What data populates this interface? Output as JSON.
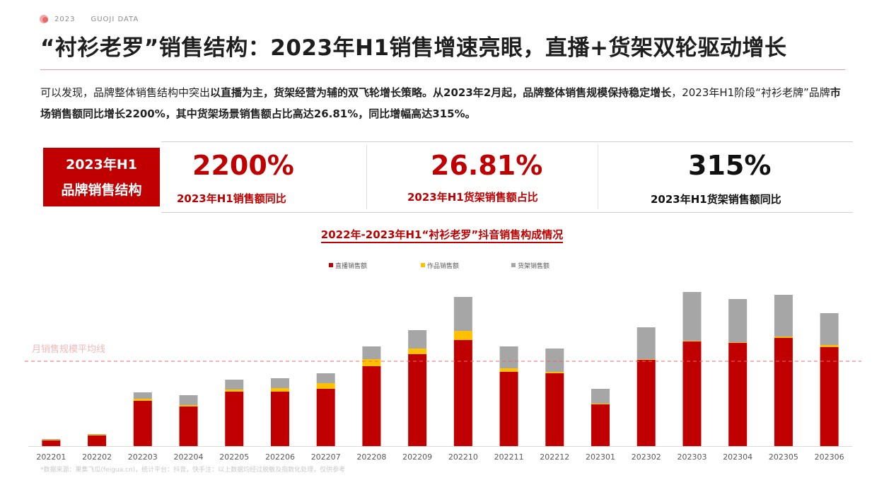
{
  "header": {
    "year": "2023",
    "company": "GUOJI DATA",
    "title": "“衬衫老罗”销售结构：2023年H1销售增速亮眼，直播+货架双轮驱动增长"
  },
  "intro": {
    "p1": "可以发现，品牌整体销售结构中突出",
    "b1": "以直播为主，货架经营为辅的双飞轮增长策略。从2023年2月起，品牌整体销售规模保持稳定增长",
    "p2": "，2023年H1阶段“衬衫老牌”品牌",
    "b2": "市场销售额同比增长2200%，其中货架场景销售额占比高达26.81%，同比增幅高达315%。"
  },
  "kpi": {
    "label_line1": "2023年H1",
    "label_line2": "品牌销售结构",
    "items": [
      {
        "value": "2200%",
        "caption": "2023年H1销售额同比"
      },
      {
        "value": "26.81%",
        "caption": "2023年H1货架销售额占比"
      },
      {
        "value": "315%",
        "caption": "2023年H1货架销售额同比"
      }
    ]
  },
  "chart": {
    "title": "2022年-2023年H1“衬衫老罗”抖音销售构成情况",
    "avg_label": "月销售规模平均线"
  },
  "footnote": "*数据来源：果集飞瓜(feigua.cn)，统计平台：抖音，快手注：以上数据均经过脱敏及指数化处理，仅供参考",
  "colors": {
    "accent": "#c00000",
    "live": "#c00000",
    "works": "#ffc000",
    "shelf": "#a6a6a6",
    "avg_line": "#e36b70"
  },
  "chart_data": {
    "type": "bar",
    "stacked": true,
    "title": "2022年-2023年H1“衬衫老罗”抖音销售构成情况",
    "categories": [
      "202201",
      "202202",
      "202203",
      "202204",
      "202205",
      "202206",
      "202207",
      "202208",
      "202209",
      "202210",
      "202211",
      "202212",
      "202301",
      "202302",
      "202303",
      "202304",
      "202305",
      "202306"
    ],
    "series": [
      {
        "name": "直播销售额",
        "values": [
          8,
          15,
          64,
          56,
          77,
          77,
          81,
          113,
          130,
          150,
          105,
          103,
          59,
          122,
          148,
          146,
          153,
          140
        ]
      },
      {
        "name": "作品销售额",
        "values": [
          1,
          1,
          3,
          2,
          3,
          5,
          8,
          10,
          8,
          13,
          5,
          2,
          1,
          1,
          1,
          1,
          2,
          3
        ]
      },
      {
        "name": "货架销售额",
        "values": [
          1,
          1,
          9,
          14,
          14,
          14,
          14,
          18,
          26,
          48,
          31,
          33,
          21,
          45,
          69,
          61,
          59,
          45
        ]
      }
    ],
    "average_line": 120,
    "ylim": [
      0,
      220
    ],
    "legend": "top-center",
    "grid": false
  }
}
